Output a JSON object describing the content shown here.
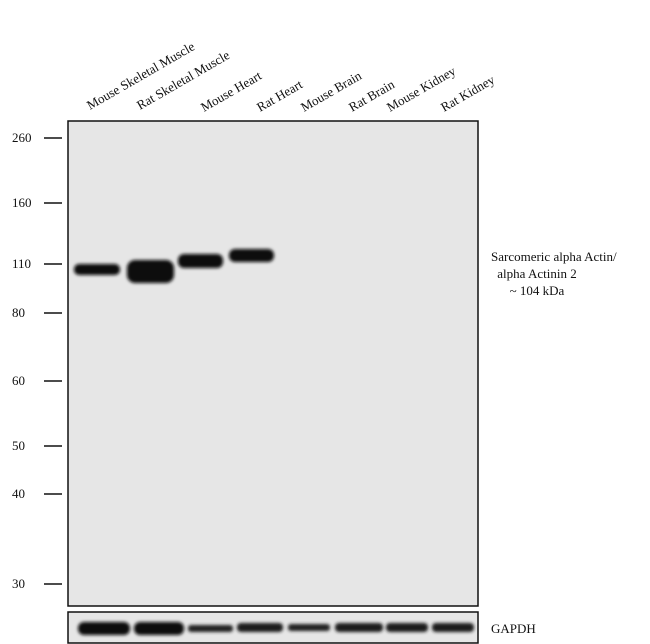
{
  "lanes": [
    "Mouse Skeletal Muscle",
    "Rat Skeletal Muscle",
    "Mouse Heart",
    "Rat Heart",
    "Mouse Brain",
    "Rat Brain",
    "Mouse Kidney",
    "Rat Kidney"
  ],
  "markers": [
    260,
    160,
    110,
    80,
    60,
    50,
    40,
    30
  ],
  "target_label": [
    "Sarcomeric alpha Actin/",
    "alpha Actinin 2",
    "~ 104 kDa"
  ],
  "loading_control": "GAPDH"
}
